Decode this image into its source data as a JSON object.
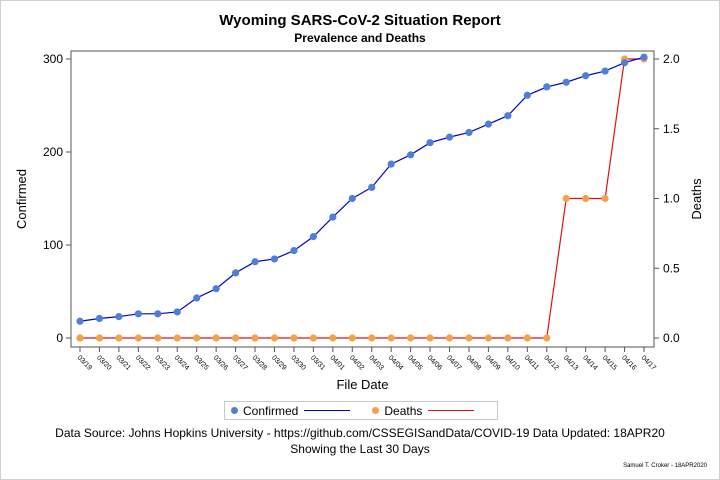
{
  "colors": {
    "confirmed_marker": "#4f7fd8",
    "confirmed_line": "#0000cc",
    "deaths_marker": "#f5a04a",
    "deaths_line": "#e01010",
    "axis": "#555555"
  },
  "chart_data": {
    "type": "line",
    "title": "Wyoming SARS-CoV-2 Situation Report",
    "subtitle": "Prevalence and Deaths",
    "xlabel": "File Date",
    "ylabel": "Confirmed",
    "y2label": "Deaths",
    "categories": [
      "03/19",
      "03/20",
      "03/21",
      "03/22",
      "03/23",
      "03/24",
      "03/25",
      "03/26",
      "03/27",
      "03/28",
      "03/29",
      "03/30",
      "03/31",
      "04/01",
      "04/02",
      "04/03",
      "04/04",
      "04/05",
      "04/06",
      "04/07",
      "04/08",
      "04/09",
      "04/10",
      "04/11",
      "04/12",
      "04/13",
      "04/14",
      "04/15",
      "04/16",
      "04/17"
    ],
    "ylim": [
      0,
      300
    ],
    "y_ticks": [
      "0",
      "100",
      "200",
      "300"
    ],
    "y2lim": [
      0,
      2
    ],
    "y2_ticks": [
      "0.0",
      "0.5",
      "1.0",
      "1.5",
      "2.0"
    ],
    "series": [
      {
        "name": "Confirmed",
        "axis": "left",
        "values": [
          18,
          21,
          23,
          26,
          26,
          28,
          43,
          53,
          70,
          82,
          85,
          94,
          109,
          130,
          150,
          162,
          187,
          197,
          210,
          216,
          221,
          230,
          239,
          261,
          270,
          275,
          282,
          287,
          296,
          302
        ]
      },
      {
        "name": "Deaths",
        "axis": "right",
        "values": [
          0,
          0,
          0,
          0,
          0,
          0,
          0,
          0,
          0,
          0,
          0,
          0,
          0,
          0,
          0,
          0,
          0,
          0,
          0,
          0,
          0,
          0,
          0,
          0,
          0,
          1,
          1,
          1,
          2,
          2
        ]
      }
    ],
    "legend_position": "bottom",
    "grid": false
  },
  "footnote": {
    "line1": "Data Source: Johns Hopkins University - https://github.com/CSSEGISandData/COVID-19 Data Updated: 18APR20",
    "line2": "Showing the Last 30 Days"
  },
  "credit": "Samuel T. Croker - 18APR2020"
}
